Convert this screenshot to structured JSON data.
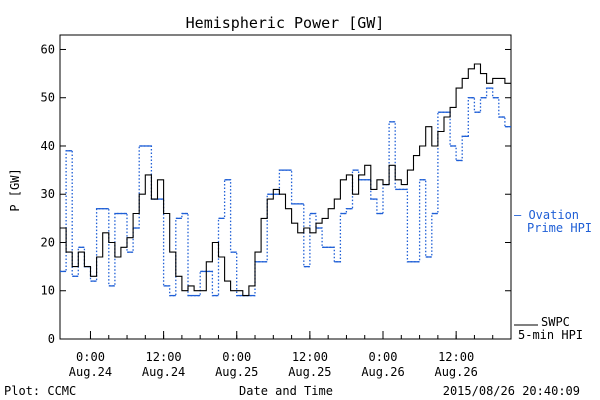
{
  "chart_data": {
    "type": "line",
    "title": "Hemispheric Power [GW]",
    "xlabel": "Date and Time",
    "ylabel": "P [GW]",
    "ylim": [
      0,
      63
    ],
    "yticks": [
      0,
      10,
      20,
      30,
      40,
      50,
      60
    ],
    "xlim": [
      "2015-08-23 19:00",
      "2015-08-26 21:00"
    ],
    "xticks": [
      {
        "time": "2015-08-24 00:00",
        "label": "0:00",
        "date": "Aug.24"
      },
      {
        "time": "2015-08-24 12:00",
        "label": "12:00",
        "date": "Aug.24"
      },
      {
        "time": "2015-08-25 00:00",
        "label": "0:00",
        "date": "Aug.25"
      },
      {
        "time": "2015-08-25 12:00",
        "label": "12:00",
        "date": "Aug.25"
      },
      {
        "time": "2015-08-26 00:00",
        "label": "0:00",
        "date": "Aug.26"
      },
      {
        "time": "2015-08-26 12:00",
        "label": "12:00",
        "date": "Aug.26"
      }
    ],
    "legend_placement": "right",
    "series": [
      {
        "name": "Ovation Prime HPI",
        "legend_lines": [
          "— Ovation",
          "Prime HPI"
        ],
        "color": "#1f5fd6",
        "style": "dotted-step",
        "x": [
          "2015-08-23 19:00",
          "2015-08-23 20:00",
          "2015-08-23 21:00",
          "2015-08-23 22:00",
          "2015-08-23 23:00",
          "2015-08-24 00:00",
          "2015-08-24 01:00",
          "2015-08-24 02:00",
          "2015-08-24 03:00",
          "2015-08-24 04:00",
          "2015-08-24 05:00",
          "2015-08-24 06:00",
          "2015-08-24 07:00",
          "2015-08-24 08:00",
          "2015-08-24 09:00",
          "2015-08-24 10:00",
          "2015-08-24 11:00",
          "2015-08-24 12:00",
          "2015-08-24 13:00",
          "2015-08-24 14:00",
          "2015-08-24 15:00",
          "2015-08-24 16:00",
          "2015-08-24 17:00",
          "2015-08-24 18:00",
          "2015-08-24 19:00",
          "2015-08-24 20:00",
          "2015-08-24 21:00",
          "2015-08-24 22:00",
          "2015-08-24 23:00",
          "2015-08-25 00:00",
          "2015-08-25 01:00",
          "2015-08-25 02:00",
          "2015-08-25 03:00",
          "2015-08-25 04:00",
          "2015-08-25 05:00",
          "2015-08-25 06:00",
          "2015-08-25 07:00",
          "2015-08-25 08:00",
          "2015-08-25 09:00",
          "2015-08-25 10:00",
          "2015-08-25 11:00",
          "2015-08-25 12:00",
          "2015-08-25 13:00",
          "2015-08-25 14:00",
          "2015-08-25 15:00",
          "2015-08-25 16:00",
          "2015-08-25 17:00",
          "2015-08-25 18:00",
          "2015-08-25 19:00",
          "2015-08-25 20:00",
          "2015-08-25 21:00",
          "2015-08-25 22:00",
          "2015-08-25 23:00",
          "2015-08-26 00:00",
          "2015-08-26 01:00",
          "2015-08-26 02:00",
          "2015-08-26 03:00",
          "2015-08-26 04:00",
          "2015-08-26 05:00",
          "2015-08-26 06:00",
          "2015-08-26 07:00",
          "2015-08-26 08:00",
          "2015-08-26 09:00",
          "2015-08-26 10:00",
          "2015-08-26 11:00",
          "2015-08-26 12:00",
          "2015-08-26 13:00",
          "2015-08-26 14:00",
          "2015-08-26 15:00",
          "2015-08-26 16:00",
          "2015-08-26 17:00",
          "2015-08-26 18:00",
          "2015-08-26 19:00",
          "2015-08-26 20:00"
        ],
        "y": [
          14,
          39,
          13,
          19,
          15,
          12,
          27,
          27,
          11,
          26,
          26,
          18,
          23,
          40,
          40,
          29,
          29,
          11,
          9,
          25,
          26,
          9,
          9,
          14,
          14,
          9,
          25,
          33,
          18,
          9,
          9,
          9,
          16,
          16,
          30,
          30,
          35,
          35,
          28,
          28,
          15,
          26,
          23,
          19,
          19,
          16,
          26,
          27,
          35,
          33,
          33,
          29,
          26,
          32,
          45,
          31,
          31,
          16,
          16,
          33,
          17,
          26,
          47,
          47,
          40,
          37,
          42,
          50,
          47,
          50,
          52,
          50,
          46,
          44
        ]
      },
      {
        "name": "SWPC 5-min HPI",
        "legend_lines": [
          "SWPC",
          "5-min HPI"
        ],
        "color": "#000000",
        "style": "solid-step",
        "x": [
          "2015-08-23 19:00",
          "2015-08-23 20:00",
          "2015-08-23 21:00",
          "2015-08-23 22:00",
          "2015-08-23 23:00",
          "2015-08-24 00:00",
          "2015-08-24 01:00",
          "2015-08-24 02:00",
          "2015-08-24 03:00",
          "2015-08-24 04:00",
          "2015-08-24 05:00",
          "2015-08-24 06:00",
          "2015-08-24 07:00",
          "2015-08-24 08:00",
          "2015-08-24 09:00",
          "2015-08-24 10:00",
          "2015-08-24 11:00",
          "2015-08-24 12:00",
          "2015-08-24 13:00",
          "2015-08-24 14:00",
          "2015-08-24 15:00",
          "2015-08-24 16:00",
          "2015-08-24 17:00",
          "2015-08-24 18:00",
          "2015-08-24 19:00",
          "2015-08-24 20:00",
          "2015-08-24 21:00",
          "2015-08-24 22:00",
          "2015-08-24 23:00",
          "2015-08-25 00:00",
          "2015-08-25 01:00",
          "2015-08-25 02:00",
          "2015-08-25 03:00",
          "2015-08-25 04:00",
          "2015-08-25 05:00",
          "2015-08-25 06:00",
          "2015-08-25 07:00",
          "2015-08-25 08:00",
          "2015-08-25 09:00",
          "2015-08-25 10:00",
          "2015-08-25 11:00",
          "2015-08-25 12:00",
          "2015-08-25 13:00",
          "2015-08-25 14:00",
          "2015-08-25 15:00",
          "2015-08-25 16:00",
          "2015-08-25 17:00",
          "2015-08-25 18:00",
          "2015-08-25 19:00",
          "2015-08-25 20:00",
          "2015-08-25 21:00",
          "2015-08-25 22:00",
          "2015-08-25 23:00",
          "2015-08-26 00:00",
          "2015-08-26 01:00",
          "2015-08-26 02:00",
          "2015-08-26 03:00",
          "2015-08-26 04:00",
          "2015-08-26 05:00",
          "2015-08-26 06:00",
          "2015-08-26 07:00",
          "2015-08-26 08:00",
          "2015-08-26 09:00",
          "2015-08-26 10:00",
          "2015-08-26 11:00",
          "2015-08-26 12:00",
          "2015-08-26 13:00",
          "2015-08-26 14:00",
          "2015-08-26 15:00",
          "2015-08-26 16:00",
          "2015-08-26 17:00",
          "2015-08-26 18:00",
          "2015-08-26 19:00",
          "2015-08-26 20:00"
        ],
        "y": [
          23,
          18,
          15,
          18,
          15,
          13,
          17,
          22,
          20,
          17,
          19,
          21,
          26,
          30,
          34,
          29,
          33,
          26,
          18,
          13,
          10,
          11,
          10,
          10,
          16,
          20,
          17,
          12,
          10,
          10,
          9,
          11,
          18,
          25,
          29,
          31,
          30,
          27,
          24,
          22,
          23,
          22,
          24,
          25,
          27,
          29,
          33,
          34,
          30,
          34,
          36,
          31,
          33,
          32,
          36,
          33,
          32,
          35,
          38,
          40,
          44,
          40,
          43,
          46,
          48,
          52,
          54,
          56,
          57,
          55,
          53,
          54,
          54,
          53
        ]
      }
    ]
  },
  "footer": {
    "plot_credit": "Plot: CCMC",
    "center_label": "Date and Time",
    "timestamp": "2015/08/26 20:40:09"
  }
}
